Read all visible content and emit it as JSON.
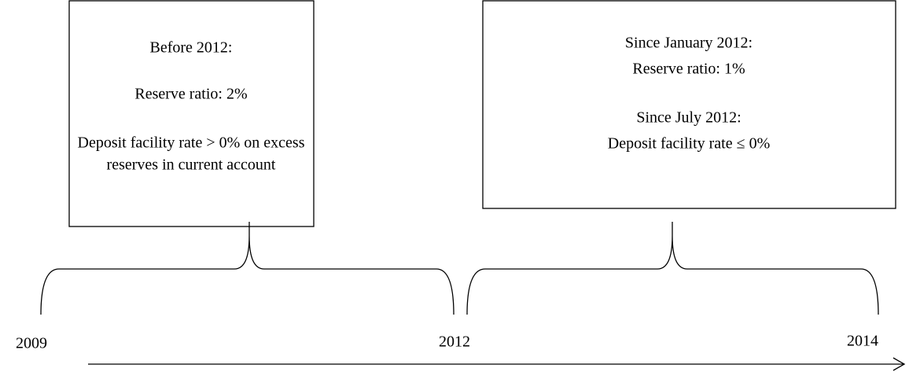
{
  "boxes": [
    {
      "lines": [
        "Before 2012:",
        "Reserve ratio: 2%",
        "Deposit facility rate > 0% on excess",
        "reserves in current account"
      ]
    },
    {
      "lines": [
        "Since January 2012:",
        "Reserve ratio: 1%",
        "Since July 2012:",
        "Deposit facility rate ≤ 0%"
      ]
    }
  ],
  "timeline": {
    "labels": [
      "2009",
      "2012",
      "2014"
    ]
  }
}
